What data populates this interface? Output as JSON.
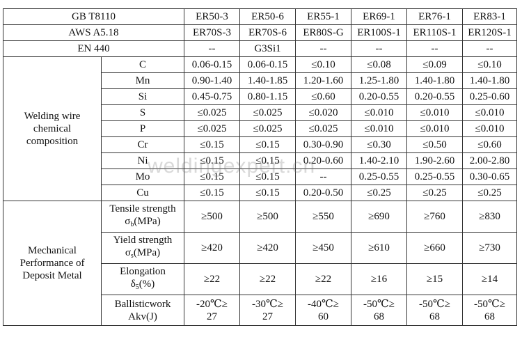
{
  "header_rows": [
    {
      "label": "GB T8110",
      "values": [
        "ER50-3",
        "ER50-6",
        "ER55-1",
        "ER69-1",
        "ER76-1",
        "ER83-1"
      ]
    },
    {
      "label": "AWS A5.18",
      "values": [
        "ER70S-3",
        "ER70S-6",
        "ER80S-G",
        "ER100S-1",
        "ER110S-1",
        "ER120S-1"
      ]
    },
    {
      "label": "EN 440",
      "values": [
        "--",
        "G3Si1",
        "--",
        "--",
        "--",
        "--"
      ]
    }
  ],
  "chemical": {
    "group_label": "Welding wire chemical composition",
    "rows": [
      {
        "element": "C",
        "values": [
          "0.06-0.15",
          "0.06-0.15",
          "≤0.10",
          "≤0.08",
          "≤0.09",
          "≤0.10"
        ]
      },
      {
        "element": "Mn",
        "values": [
          "0.90-1.40",
          "1.40-1.85",
          "1.20-1.60",
          "1.25-1.80",
          "1.40-1.80",
          "1.40-1.80"
        ]
      },
      {
        "element": "Si",
        "values": [
          "0.45-0.75",
          "0.80-1.15",
          "≤0.60",
          "0.20-0.55",
          "0.20-0.55",
          "0.25-0.60"
        ]
      },
      {
        "element": "S",
        "values": [
          "≤0.025",
          "≤0.025",
          "≤0.020",
          "≤0.010",
          "≤0.010",
          "≤0.010"
        ]
      },
      {
        "element": "P",
        "values": [
          "≤0.025",
          "≤0.025",
          "≤0.025",
          "≤0.010",
          "≤0.010",
          "≤0.010"
        ]
      },
      {
        "element": "Cr",
        "values": [
          "≤0.15",
          "≤0.15",
          "0.30-0.90",
          "≤0.30",
          "≤0.50",
          "≤0.60"
        ]
      },
      {
        "element": "Ni",
        "values": [
          "≤0.15",
          "≤0.15",
          "0.20-0.60",
          "1.40-2.10",
          "1.90-2.60",
          "2.00-2.80"
        ]
      },
      {
        "element": "Mo",
        "values": [
          "≤0.15",
          "≤0.15",
          "--",
          "0.25-0.55",
          "0.25-0.55",
          "0.30-0.65"
        ]
      },
      {
        "element": "Cu",
        "values": [
          "≤0.15",
          "≤0.15",
          "0.20-0.50",
          "≤0.25",
          "≤0.25",
          "≤0.25"
        ]
      }
    ]
  },
  "mechanical": {
    "group_label": "Mechanical Performance of Deposit Metal",
    "rows": [
      {
        "label_line1": "Tensile strength",
        "label_sym": "σ",
        "label_sub": "b",
        "label_unit": "(MPa)",
        "values": [
          "≥500",
          "≥500",
          "≥550",
          "≥690",
          "≥760",
          "≥830"
        ]
      },
      {
        "label_line1": "Yield strength",
        "label_sym": "σ",
        "label_sub": "s",
        "label_unit": "(MPa)",
        "values": [
          "≥420",
          "≥420",
          "≥450",
          "≥610",
          "≥660",
          "≥730"
        ]
      },
      {
        "label_line1": "Elongation",
        "label_sym": "δ",
        "label_sub": "5",
        "label_unit": "(%)",
        "values": [
          "≥22",
          "≥22",
          "≥22",
          "≥16",
          "≥15",
          "≥14"
        ]
      }
    ],
    "impact": {
      "label_line1": "Ballisticwork",
      "label_line2": "Akv(J)",
      "values": [
        {
          "top": "-20℃≥",
          "bottom": "27"
        },
        {
          "top": "-30℃≥",
          "bottom": "27"
        },
        {
          "top": "-40℃≥",
          "bottom": "60"
        },
        {
          "top": "-50℃≥",
          "bottom": "68"
        },
        {
          "top": "-50℃≥",
          "bottom": "68"
        },
        {
          "top": "-50℃≥",
          "bottom": "68"
        }
      ]
    }
  },
  "watermark": "weldingexpert.cn"
}
